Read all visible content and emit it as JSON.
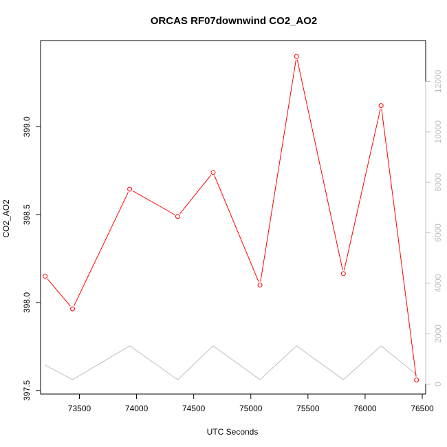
{
  "chart_data": {
    "type": "line",
    "title": "ORCAS RF07downwind CO2_AO2",
    "xlabel": "UTC Seconds",
    "ylabel": "CO2_AO2",
    "xlim": [
      73160,
      76530
    ],
    "ylim": [
      397.48,
      399.49
    ],
    "y2lim": [
      -390,
      13620
    ],
    "x_ticks": [
      73500,
      74000,
      74500,
      75000,
      75500,
      76000,
      76500
    ],
    "y_ticks": [
      397.5,
      398.0,
      398.5,
      399.0
    ],
    "y_tick_labels": [
      "397.5",
      "398.0",
      "398.5",
      "399.0"
    ],
    "y2_ticks": [
      0,
      2000,
      4000,
      6000,
      8000,
      10000,
      12000
    ],
    "series": [
      {
        "axis": "left",
        "color": "#ff0000",
        "markers": true,
        "x": [
          73200,
          73440,
          73940,
          74360,
          74670,
          75080,
          75400,
          75810,
          76140,
          76450
        ],
        "values": [
          398.15,
          397.965,
          398.645,
          398.49,
          398.74,
          398.1,
          399.4,
          398.165,
          399.12,
          397.56
        ]
      },
      {
        "axis": "right",
        "color": "#bfbfbf",
        "markers": false,
        "x": [
          73200,
          73440,
          73940,
          74360,
          74670,
          75080,
          75400,
          75810,
          76140,
          76450
        ],
        "values": [
          760,
          180,
          1520,
          180,
          1520,
          180,
          1520,
          180,
          1520,
          380
        ]
      }
    ]
  }
}
